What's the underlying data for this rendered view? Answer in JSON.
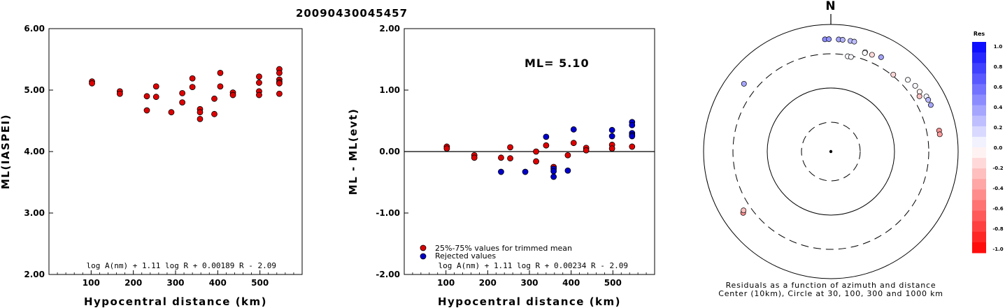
{
  "title": "20090430045457",
  "chart_data": [
    {
      "type": "scatter",
      "xlabel": "Hypocentral distance (km)",
      "ylabel": "ML(IASPEI)",
      "xlim": [
        0,
        600
      ],
      "ylim": [
        2.0,
        6.0
      ],
      "xticks": [
        100,
        200,
        300,
        400,
        500
      ],
      "yticks": [
        "2.00",
        "3.00",
        "4.00",
        "5.00",
        "6.00"
      ],
      "formula": "log A(nm) + 1.11 log R + 0.00189 R - 2.09",
      "series": [
        {
          "color": "#dd0000",
          "points": [
            [
              102,
              5.14
            ],
            [
              102,
              5.11
            ],
            [
              168,
              4.98
            ],
            [
              168,
              4.94
            ],
            [
              232,
              4.9
            ],
            [
              232,
              4.67
            ],
            [
              254,
              5.06
            ],
            [
              254,
              4.89
            ],
            [
              290,
              4.64
            ],
            [
              316,
              4.95
            ],
            [
              316,
              4.8
            ],
            [
              340,
              5.19
            ],
            [
              340,
              5.05
            ],
            [
              358,
              4.69
            ],
            [
              358,
              4.64
            ],
            [
              358,
              4.53
            ],
            [
              392,
              4.86
            ],
            [
              392,
              4.61
            ],
            [
              406,
              5.28
            ],
            [
              406,
              5.06
            ],
            [
              436,
              4.96
            ],
            [
              436,
              4.92
            ],
            [
              498,
              5.22
            ],
            [
              498,
              5.12
            ],
            [
              498,
              4.98
            ],
            [
              498,
              4.92
            ],
            [
              546,
              5.34
            ],
            [
              546,
              5.28
            ],
            [
              546,
              5.17
            ],
            [
              546,
              5.13
            ],
            [
              546,
              5.11
            ],
            [
              546,
              4.94
            ]
          ]
        }
      ]
    },
    {
      "type": "scatter",
      "xlabel": "Hypocentral distance (km)",
      "ylabel": "ML - ML(evt)",
      "xlim": [
        0,
        600
      ],
      "ylim": [
        -2.0,
        2.0
      ],
      "xticks": [
        100,
        200,
        300,
        400,
        500
      ],
      "yticks": [
        "-2.00",
        "-1.00",
        "0.00",
        "1.00",
        "2.00"
      ],
      "annotation": "ML= 5.10",
      "formula": "log A(nm) + 1.11 log R + 0.00234 R - 2.09",
      "legend": [
        "25%-75% values for trimmed mean",
        "Rejected values"
      ],
      "series": [
        {
          "color": "#dd0000",
          "points": [
            [
              102,
              0.08
            ],
            [
              102,
              0.05
            ],
            [
              168,
              -0.06
            ],
            [
              168,
              -0.1
            ],
            [
              232,
              -0.1
            ],
            [
              254,
              0.07
            ],
            [
              254,
              -0.11
            ],
            [
              316,
              0.0
            ],
            [
              316,
              -0.16
            ],
            [
              340,
              0.1
            ],
            [
              358,
              -0.25
            ],
            [
              392,
              -0.06
            ],
            [
              406,
              0.14
            ],
            [
              436,
              0.06
            ],
            [
              436,
              0.02
            ],
            [
              498,
              0.11
            ],
            [
              498,
              0.05
            ],
            [
              546,
              0.08
            ]
          ]
        },
        {
          "color": "#0000cc",
          "points": [
            [
              232,
              -0.33
            ],
            [
              290,
              -0.33
            ],
            [
              340,
              0.24
            ],
            [
              358,
              -0.28
            ],
            [
              358,
              -0.32
            ],
            [
              358,
              -0.41
            ],
            [
              392,
              -0.31
            ],
            [
              406,
              0.36
            ],
            [
              498,
              0.35
            ],
            [
              498,
              0.25
            ],
            [
              546,
              0.48
            ],
            [
              546,
              0.43
            ],
            [
              546,
              0.3
            ],
            [
              546,
              0.27
            ],
            [
              546,
              0.25
            ]
          ]
        }
      ]
    },
    {
      "type": "polar-scatter",
      "north_label": "N",
      "caption_line1": "Residuals as a function of azimuth and distance",
      "caption_line2": "Center (10km), Circle at 30, 100, 300 and 1000 km",
      "colorbar_title": "Res",
      "colorbar_ticks": [
        "1.0",
        "0.8",
        "0.6",
        "0.4",
        "0.2",
        "0.0",
        "-0.2",
        "-0.4",
        "-0.6",
        "-0.8",
        "-1.0"
      ],
      "points": [
        {
          "az": -3,
          "dist": 546,
          "res": 0.45
        },
        {
          "az": -1,
          "dist": 546,
          "res": 0.42
        },
        {
          "az": 4,
          "dist": 546,
          "res": 0.35
        },
        {
          "az": 6,
          "dist": 546,
          "res": 0.3
        },
        {
          "az": 10,
          "dist": 546,
          "res": 0.28
        },
        {
          "az": 12,
          "dist": 546,
          "res": 0.25
        },
        {
          "az": 19,
          "dist": 406,
          "res": 0.03
        },
        {
          "az": 19,
          "dist": 392,
          "res": 0.02
        },
        {
          "az": 23,
          "dist": 406,
          "res": -0.15
        },
        {
          "az": 28,
          "dist": 436,
          "res": 0.36
        },
        {
          "az": 10,
          "dist": 290,
          "res": 0.02
        },
        {
          "az": 12,
          "dist": 290,
          "res": 0.03
        },
        {
          "az": 39,
          "dist": 316,
          "res": -0.16
        },
        {
          "az": 47,
          "dist": 406,
          "res": 0.02
        },
        {
          "az": 52,
          "dist": 436,
          "res": 0.03
        },
        {
          "az": 56,
          "dist": 436,
          "res": -0.06
        },
        {
          "az": 58,
          "dist": 392,
          "res": -0.25
        },
        {
          "az": 60,
          "dist": 498,
          "res": 0.05
        },
        {
          "az": 62,
          "dist": 498,
          "res": 0.28
        },
        {
          "az": 65,
          "dist": 498,
          "res": 0.35
        },
        {
          "az": 79,
          "dist": 498,
          "res": -0.42
        },
        {
          "az": 81,
          "dist": 498,
          "res": -0.38
        },
        {
          "az": -52,
          "dist": 498,
          "res": 0.35
        },
        {
          "az": -125,
          "dist": 436,
          "res": -0.45
        },
        {
          "az": -124,
          "dist": 406,
          "res": -0.25
        }
      ]
    }
  ]
}
